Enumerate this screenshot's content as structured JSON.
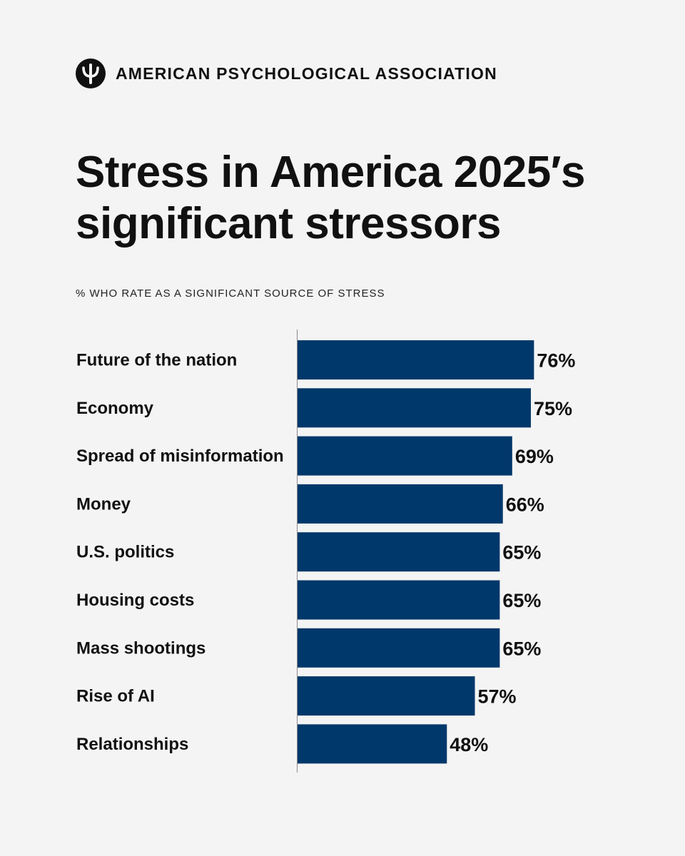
{
  "organization": {
    "name": "AMERICAN PSYCHOLOGICAL ASSOCIATION",
    "logo_icon": "psi-icon"
  },
  "colors": {
    "bar": "#00386b",
    "background": "#f4f4f4",
    "text": "#111111"
  },
  "chart_data": {
    "type": "bar",
    "orientation": "horizontal",
    "title": "Stress in America 2025′s significant stressors",
    "subtitle": "% WHO RATE AS A SIGNIFICANT SOURCE OF STRESS",
    "categories": [
      "Future of the nation",
      "Economy",
      "Spread of misinformation",
      "Money",
      "U.S. politics",
      "Housing costs",
      "Mass shootings",
      "Rise of AI",
      "Relationships"
    ],
    "values": [
      76,
      75,
      69,
      66,
      65,
      65,
      65,
      57,
      48
    ],
    "value_labels": [
      "76%",
      "75%",
      "69%",
      "66%",
      "65%",
      "65%",
      "65%",
      "57%",
      "48%"
    ],
    "unit": "%",
    "xlim": [
      0,
      100
    ],
    "grid": false
  }
}
